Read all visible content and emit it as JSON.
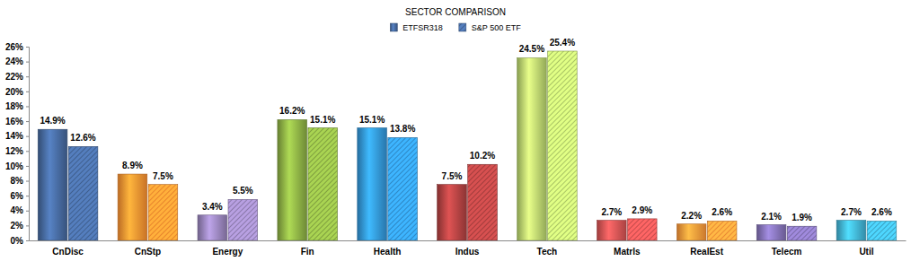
{
  "chart_data": {
    "type": "bar",
    "title": "SECTOR COMPARISON",
    "categories": [
      "CnDisc",
      "CnStp",
      "Energy",
      "Fin",
      "Health",
      "Indus",
      "Tech",
      "Matrls",
      "RealEst",
      "Telecm",
      "Util"
    ],
    "colors": [
      "#3f5f8f",
      "#e8842c",
      "#8a78aa",
      "#7f9f3e",
      "#2e88c6",
      "#a23c3c",
      "#a9c464",
      "#c44c4c",
      "#ea8a34",
      "#7868a6",
      "#3ba2c2"
    ],
    "series": [
      {
        "name": "ETFSR318",
        "color": "#3f5f8f",
        "values": [
          14.9,
          8.9,
          3.4,
          16.2,
          15.1,
          7.5,
          24.5,
          2.7,
          2.2,
          2.1,
          2.7
        ],
        "value_labels": [
          "14.9%",
          "8.9%",
          "3.4%",
          "16.2%",
          "15.1%",
          "7.5%",
          "24.5%",
          "2.7%",
          "2.2%",
          "2.1%",
          "2.7%"
        ]
      },
      {
        "name": "S&P 500 ETF",
        "color": "#3f5f8f",
        "values": [
          12.6,
          7.5,
          5.5,
          15.1,
          13.8,
          10.2,
          25.4,
          2.9,
          2.6,
          1.9,
          2.6
        ],
        "value_labels": [
          "12.6%",
          "7.5%",
          "5.5%",
          "15.1%",
          "13.8%",
          "10.2%",
          "25.4%",
          "2.9%",
          "2.6%",
          "1.9%",
          "2.6%"
        ]
      }
    ],
    "ylim": [
      0,
      26
    ],
    "yticks": [
      {
        "value": 0,
        "label": "0%"
      },
      {
        "value": 2,
        "label": "2%"
      },
      {
        "value": 4,
        "label": "4%"
      },
      {
        "value": 6,
        "label": "6%"
      },
      {
        "value": 8,
        "label": "8%"
      },
      {
        "value": 10,
        "label": "10%"
      },
      {
        "value": 12,
        "label": "12%"
      },
      {
        "value": 14,
        "label": "14%"
      },
      {
        "value": 16,
        "label": "16%"
      },
      {
        "value": 18,
        "label": "18%"
      },
      {
        "value": 20,
        "label": "20%"
      },
      {
        "value": 22,
        "label": "22%"
      },
      {
        "value": 24,
        "label": "24%"
      },
      {
        "value": 26,
        "label": "26%"
      }
    ],
    "grid": false,
    "legend": "top",
    "data_labels": true
  }
}
